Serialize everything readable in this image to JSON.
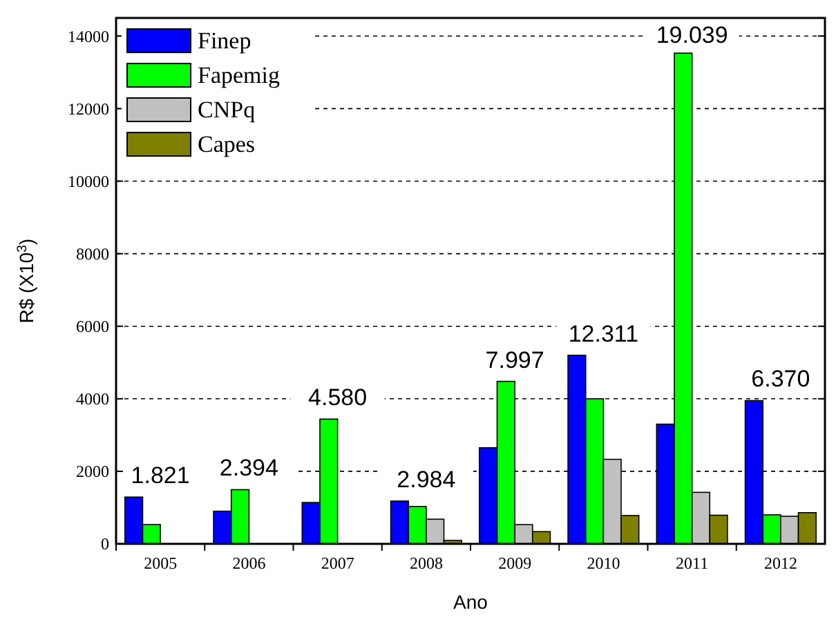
{
  "chart_data": {
    "type": "bar",
    "xlabel": "Ano",
    "ylabel": "R$ (X10$^{3}$)",
    "categories": [
      "2005",
      "2006",
      "2007",
      "2008",
      "2009",
      "2010",
      "2011",
      "2012"
    ],
    "series": [
      {
        "name": "Finep",
        "color": "#0000ff",
        "values": [
          1290,
          900,
          1140,
          1180,
          2650,
          5200,
          3300,
          3950
        ]
      },
      {
        "name": "Fapemig",
        "color": "#00ff00",
        "values": [
          531,
          1494,
          3440,
          1030,
          4480,
          4000,
          13530,
          800
        ]
      },
      {
        "name": "CNPq",
        "color": "#c0c0c0",
        "values": [
          0,
          0,
          0,
          680,
          530,
          2330,
          1420,
          760
        ]
      },
      {
        "name": "Capes",
        "color": "#808000",
        "values": [
          0,
          0,
          0,
          94,
          337,
          781,
          789,
          860
        ]
      }
    ],
    "totals": [
      "1.821",
      "2.394",
      "4.580",
      "2.984",
      "7.997",
      "12.311",
      "19.039",
      "6.370"
    ],
    "ylim": [
      0,
      14500
    ],
    "yticks": [
      0,
      2000,
      4000,
      6000,
      8000,
      10000,
      12000,
      14000
    ],
    "grid": "y",
    "legend": "top left"
  }
}
